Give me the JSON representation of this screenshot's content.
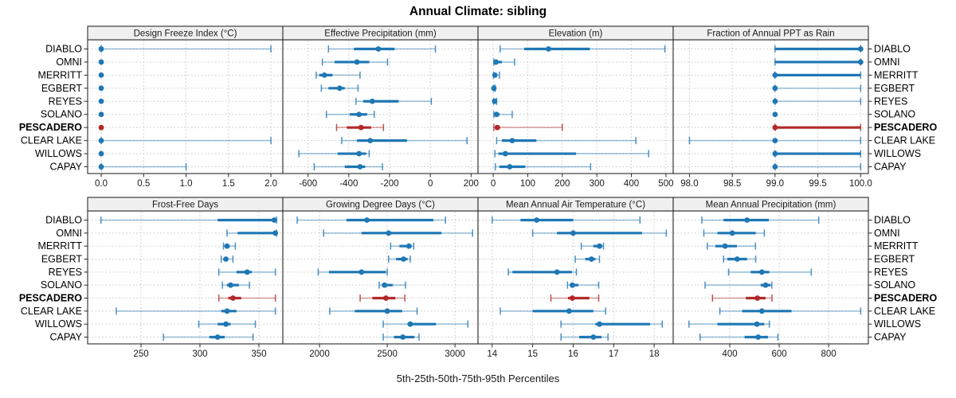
{
  "header": {
    "title": "Annual Climate: sibling"
  },
  "footer": {
    "label": "5th-25th-50th-75th-95th Percentiles"
  },
  "colors": {
    "normal": "#1f77b4",
    "highlight": "#b22929",
    "strip_bg": "#f0f0f0",
    "panel_border": "#2a2a2a",
    "grid": "#c6c6c6",
    "tick_text": "#1a1a1a",
    "label_text": "#000000"
  },
  "chart_data": {
    "type": "scatter",
    "variant": "percentile-interval-trellis",
    "percentiles": [
      5,
      25,
      50,
      75,
      95
    ],
    "legend": "5th-25th-50th-75th-95th Percentiles",
    "grid": "dotted",
    "layout": {
      "rows": 2,
      "cols": 4
    },
    "stations": [
      "DIABLO",
      "OMNI",
      "MERRITT",
      "EGBERT",
      "REYES",
      "SOLANO",
      "PESCADERO",
      "CLEAR LAKE",
      "WILLOWS",
      "CAPAY"
    ],
    "highlight_station": "PESCADERO",
    "panels": [
      {
        "title": "Design Freeze Index (°C)",
        "row": 0,
        "col": 0,
        "ticks": [
          0.0,
          0.5,
          1.0,
          1.5,
          2.0
        ],
        "tick_labels": [
          "0.0",
          "0.5",
          "1.0",
          "1.5",
          "2.0"
        ],
        "domain": [
          -0.16,
          2.14
        ],
        "values": [
          [
            0,
            0,
            0,
            0,
            2.0
          ],
          [
            0,
            0,
            0,
            0,
            0
          ],
          [
            0,
            0,
            0,
            0,
            0
          ],
          [
            0,
            0,
            0,
            0,
            0
          ],
          [
            0,
            0,
            0,
            0,
            0
          ],
          [
            0,
            0,
            0,
            0,
            0
          ],
          [
            0,
            0,
            0,
            0,
            0
          ],
          [
            0,
            0,
            0,
            0,
            2.0
          ],
          [
            0,
            0,
            0,
            0,
            0
          ],
          [
            0,
            0,
            0,
            0,
            1.0
          ]
        ]
      },
      {
        "title": "Effective Precipitation (mm)",
        "row": 0,
        "col": 1,
        "ticks": [
          -600,
          -400,
          -200,
          0,
          200
        ],
        "tick_labels": [
          "-600",
          "-400",
          "-200",
          "0",
          "200"
        ],
        "domain": [
          -724,
          234
        ],
        "values": [
          [
            -500,
            -375,
            -255,
            -175,
            25
          ],
          [
            -530,
            -470,
            -360,
            -300,
            -210
          ],
          [
            -560,
            -545,
            -520,
            -480,
            -345
          ],
          [
            -535,
            -500,
            -445,
            -420,
            -355
          ],
          [
            -365,
            -330,
            -285,
            -155,
            5
          ],
          [
            -510,
            -395,
            -350,
            -310,
            -275
          ],
          [
            -460,
            -410,
            -340,
            -290,
            -230
          ],
          [
            -435,
            -360,
            -295,
            -115,
            180
          ],
          [
            -645,
            -455,
            -350,
            -315,
            -300
          ],
          [
            -570,
            -420,
            -345,
            -320,
            -235
          ]
        ]
      },
      {
        "title": "Elevation (m)",
        "row": 0,
        "col": 2,
        "ticks": [
          0,
          100,
          200,
          300,
          400,
          500
        ],
        "tick_labels": [
          "0",
          "100",
          "200",
          "300",
          "400",
          "500"
        ],
        "domain": [
          -44,
          521
        ],
        "values": [
          [
            20,
            90,
            160,
            280,
            497
          ],
          [
            2,
            3,
            8,
            25,
            62
          ],
          [
            1,
            2,
            5,
            10,
            18
          ],
          [
            1,
            1,
            2,
            3,
            6
          ],
          [
            1,
            2,
            4,
            6,
            10
          ],
          [
            2,
            4,
            10,
            18,
            55
          ],
          [
            2,
            5,
            12,
            20,
            200
          ],
          [
            10,
            25,
            55,
            125,
            413
          ],
          [
            5,
            15,
            35,
            240,
            450
          ],
          [
            6,
            18,
            48,
            93,
            282
          ]
        ]
      },
      {
        "title": "Fraction of Annual PPT as Rain",
        "row": 0,
        "col": 3,
        "ticks": [
          98.0,
          98.5,
          99.0,
          99.5,
          100.0
        ],
        "tick_labels": [
          "98.0",
          "98.5",
          "99.0",
          "99.5",
          "100.0"
        ],
        "domain": [
          97.81,
          100.09
        ],
        "values": [
          [
            99,
            99,
            100,
            100,
            100
          ],
          [
            99,
            99,
            100,
            100,
            100
          ],
          [
            99,
            99,
            99,
            100,
            100
          ],
          [
            99,
            99,
            99,
            99,
            100
          ],
          [
            99,
            99,
            99,
            99,
            100
          ],
          [
            99,
            99,
            99,
            99,
            99
          ],
          [
            99,
            99,
            99,
            100,
            100
          ],
          [
            98,
            99,
            99,
            99,
            100
          ],
          [
            99,
            99,
            99,
            100,
            100
          ],
          [
            99,
            99,
            99,
            99,
            100
          ]
        ]
      },
      {
        "title": "Frost-Free Days",
        "row": 1,
        "col": 0,
        "ticks": [
          250,
          300,
          350
        ],
        "tick_labels": [
          "250",
          "300",
          "350"
        ],
        "domain": [
          204.7,
          370.3
        ],
        "values": [
          [
            216,
            315,
            363,
            364,
            365
          ],
          [
            323,
            332,
            364,
            364,
            365
          ],
          [
            320,
            322,
            323,
            325,
            330
          ],
          [
            318,
            320,
            322,
            324,
            328
          ],
          [
            316,
            331,
            340,
            344,
            364
          ],
          [
            319,
            323,
            326,
            333,
            342
          ],
          [
            316,
            324,
            328,
            335,
            364
          ],
          [
            229,
            318,
            323,
            331,
            364
          ],
          [
            299,
            315,
            322,
            326,
            347
          ],
          [
            269,
            308,
            315,
            321,
            345
          ]
        ]
      },
      {
        "title": "Growing Degree Days (°C)",
        "row": 1,
        "col": 1,
        "ticks": [
          2000,
          2500,
          3000
        ],
        "tick_labels": [
          "2000",
          "2500",
          "3000"
        ],
        "domain": [
          1729,
          3170
        ],
        "values": [
          [
            1835,
            2200,
            2350,
            2840,
            2930
          ],
          [
            2030,
            2310,
            2510,
            2900,
            3130
          ],
          [
            2525,
            2590,
            2660,
            2680,
            2695
          ],
          [
            2510,
            2565,
            2620,
            2650,
            2670
          ],
          [
            1990,
            2070,
            2310,
            2490,
            2500
          ],
          [
            2440,
            2460,
            2480,
            2540,
            2635
          ],
          [
            2300,
            2390,
            2490,
            2560,
            2630
          ],
          [
            2075,
            2260,
            2500,
            2610,
            2720
          ],
          [
            2470,
            2650,
            2670,
            2860,
            3095
          ],
          [
            2470,
            2550,
            2615,
            2700,
            2735
          ]
        ]
      },
      {
        "title": "Mean Annual Air Temperature (°C)",
        "row": 1,
        "col": 2,
        "ticks": [
          14,
          15,
          16,
          17,
          18
        ],
        "tick_labels": [
          "14",
          "15",
          "16",
          "17",
          "18"
        ],
        "domain": [
          13.65,
          18.47
        ],
        "values": [
          [
            14.0,
            14.7,
            15.1,
            16.0,
            17.65
          ],
          [
            15.0,
            15.6,
            16.0,
            17.7,
            18.3
          ],
          [
            16.2,
            16.5,
            16.65,
            16.72,
            16.75
          ],
          [
            16.05,
            16.3,
            16.45,
            16.55,
            16.65
          ],
          [
            14.4,
            14.5,
            15.6,
            15.97,
            16.08
          ],
          [
            15.86,
            15.93,
            15.98,
            16.13,
            16.63
          ],
          [
            15.45,
            15.87,
            15.98,
            16.4,
            16.63
          ],
          [
            14.2,
            15.0,
            15.9,
            16.5,
            16.8
          ],
          [
            15.7,
            16.55,
            16.65,
            17.9,
            18.2
          ],
          [
            15.7,
            16.15,
            16.5,
            16.7,
            16.86
          ]
        ]
      },
      {
        "title": "Mean Annual Precipitation (mm)",
        "row": 1,
        "col": 3,
        "ticks": [
          400,
          600,
          800
        ],
        "tick_labels": [
          "400",
          "600",
          "800"
        ],
        "domain": [
          171,
          961
        ],
        "values": [
          [
            287,
            375,
            470,
            558,
            760
          ],
          [
            295,
            350,
            410,
            505,
            540
          ],
          [
            309,
            342,
            381,
            429,
            504
          ],
          [
            375,
            390,
            430,
            470,
            505
          ],
          [
            395,
            485,
            530,
            560,
            730
          ],
          [
            300,
            525,
            545,
            565,
            570
          ],
          [
            330,
            465,
            512,
            545,
            571
          ],
          [
            360,
            450,
            530,
            650,
            930
          ],
          [
            235,
            350,
            510,
            540,
            560
          ],
          [
            280,
            460,
            515,
            555,
            595
          ]
        ]
      }
    ]
  }
}
